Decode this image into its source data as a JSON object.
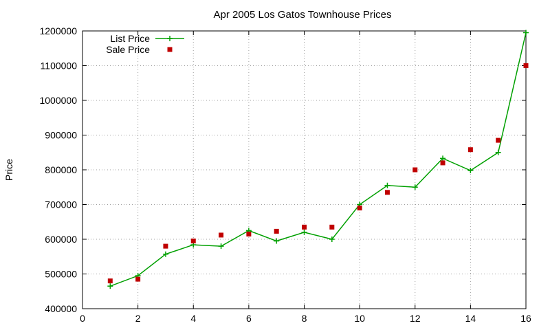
{
  "chart_data": {
    "type": "line",
    "title": "Apr 2005 Los Gatos Townhouse Prices",
    "xlabel": "",
    "ylabel": "Price",
    "xlim": [
      0,
      16
    ],
    "ylim": [
      400000,
      1200000
    ],
    "xticks": [
      0,
      2,
      4,
      6,
      8,
      10,
      12,
      14,
      16
    ],
    "yticks": [
      400000,
      500000,
      600000,
      700000,
      800000,
      900000,
      1000000,
      1100000,
      1200000
    ],
    "grid": true,
    "legend_position": "top-left",
    "series": [
      {
        "name": "List Price",
        "kind": "line-with-plus-markers",
        "color": "#00a000",
        "x": [
          1,
          2,
          3,
          4,
          5,
          6,
          7,
          8,
          9,
          10,
          11,
          12,
          13,
          14,
          15,
          16
        ],
        "y": [
          465000,
          495000,
          557000,
          584000,
          580000,
          625000,
          595000,
          620000,
          600000,
          700000,
          755000,
          750000,
          833000,
          798000,
          850000,
          1195000
        ]
      },
      {
        "name": "Sale Price",
        "kind": "square-points",
        "color": "#c00000",
        "x": [
          1,
          2,
          3,
          4,
          5,
          6,
          7,
          8,
          9,
          10,
          11,
          12,
          13,
          14,
          15,
          16
        ],
        "y": [
          480000,
          485000,
          580000,
          595000,
          612000,
          615000,
          623000,
          635000,
          635000,
          690000,
          735000,
          800000,
          820000,
          858000,
          885000,
          1100000
        ]
      }
    ]
  }
}
